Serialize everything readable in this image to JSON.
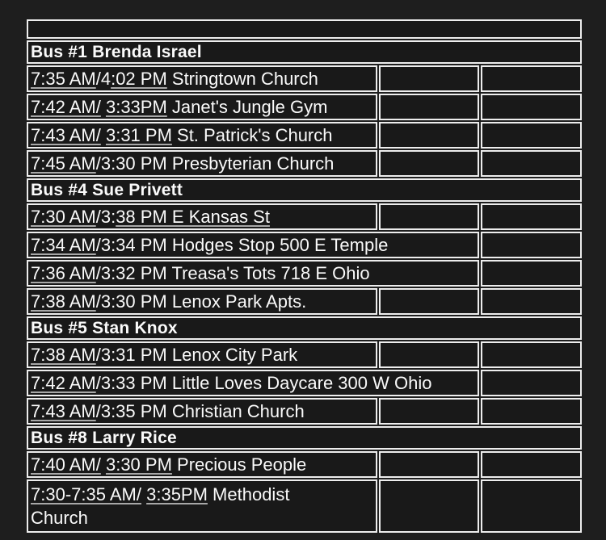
{
  "page": {
    "bg_color": "#1e1e1e",
    "cell_bg_color": "#191919",
    "border_color": "#ededed",
    "text_color": "#fafafa",
    "underline_color": "#a8a8a8"
  },
  "table": {
    "columns": 3,
    "rows": [
      {
        "kind": "empty"
      },
      {
        "kind": "section",
        "label": "Bus #1 Brenda Israel"
      },
      {
        "kind": "stop",
        "span": 1,
        "segments": [
          {
            "text": "7:35 AM",
            "underline": true
          },
          {
            "text": "/4",
            "underline": false
          },
          {
            "text": ":02 PM",
            "underline": true
          },
          {
            "text": " Stringtown Church",
            "underline": false
          }
        ]
      },
      {
        "kind": "stop",
        "span": 1,
        "segments": [
          {
            "text": "7:42 AM/",
            "underline": true
          },
          {
            "text": " ",
            "underline": false
          },
          {
            "text": "3:33PM",
            "underline": true
          },
          {
            "text": " Janet's Jungle Gym",
            "underline": false
          }
        ]
      },
      {
        "kind": "stop",
        "span": 1,
        "segments": [
          {
            "text": "7:43 AM/",
            "underline": true
          },
          {
            "text": " ",
            "underline": false
          },
          {
            "text": "3:31 PM",
            "underline": true
          },
          {
            "text": " St. Patrick's Church",
            "underline": false
          }
        ]
      },
      {
        "kind": "stop",
        "span": 1,
        "segments": [
          {
            "text": "7:45 AM",
            "underline": true
          },
          {
            "text": "/3:30 PM Presbyterian Church",
            "underline": false
          }
        ]
      },
      {
        "kind": "section",
        "label": "Bus #4 Sue Privett"
      },
      {
        "kind": "stop",
        "span": 1,
        "segments": [
          {
            "text": "7:30 AM",
            "underline": true
          },
          {
            "text": "/3:",
            "underline": false
          },
          {
            "text": "38 PM E Kansas St",
            "underline": true
          }
        ]
      },
      {
        "kind": "stop",
        "span": 2,
        "segments": [
          {
            "text": "7:34 AM",
            "underline": true
          },
          {
            "text": "/3:34 PM Hodges Stop 500 E Temple",
            "underline": false
          }
        ]
      },
      {
        "kind": "stop",
        "span": 2,
        "segments": [
          {
            "text": "7:36 AM",
            "underline": true
          },
          {
            "text": "/3:32 PM Treasa's Tots 718 E Ohio",
            "underline": false
          }
        ]
      },
      {
        "kind": "stop",
        "span": 1,
        "segments": [
          {
            "text": "7:38 AM",
            "underline": true
          },
          {
            "text": "/3:30 PM Lenox Park Apts.",
            "underline": false
          }
        ]
      },
      {
        "kind": "section",
        "label": "Bus #5 Stan Knox"
      },
      {
        "kind": "stop",
        "span": 1,
        "segments": [
          {
            "text": "7:38 AM",
            "underline": true
          },
          {
            "text": "/3:31 PM Lenox City Park",
            "underline": false
          }
        ]
      },
      {
        "kind": "stop",
        "span": 2,
        "segments": [
          {
            "text": "7:42 AM",
            "underline": true
          },
          {
            "text": "/3:33 PM Little Loves Daycare 300 W Ohio",
            "underline": false
          }
        ]
      },
      {
        "kind": "stop",
        "span": 1,
        "segments": [
          {
            "text": "7:43 AM",
            "underline": true
          },
          {
            "text": "/3:35 PM Christian Church",
            "underline": false
          }
        ]
      },
      {
        "kind": "section",
        "label": "Bus #8 Larry Rice"
      },
      {
        "kind": "stop",
        "span": 1,
        "segments": [
          {
            "text": "7:40 AM/",
            "underline": true
          },
          {
            "text": " ",
            "underline": false
          },
          {
            "text": "3:30 PM",
            "underline": true
          },
          {
            "text": " Precious People",
            "underline": false
          }
        ]
      },
      {
        "kind": "stop",
        "span": 1,
        "tall": true,
        "segments": [
          {
            "text": "7:30-7:35 AM/",
            "underline": true
          },
          {
            "text": " ",
            "underline": false
          },
          {
            "text": "3:35PM",
            "underline": true
          },
          {
            "text": " Methodist Church",
            "underline": false
          }
        ]
      }
    ]
  }
}
